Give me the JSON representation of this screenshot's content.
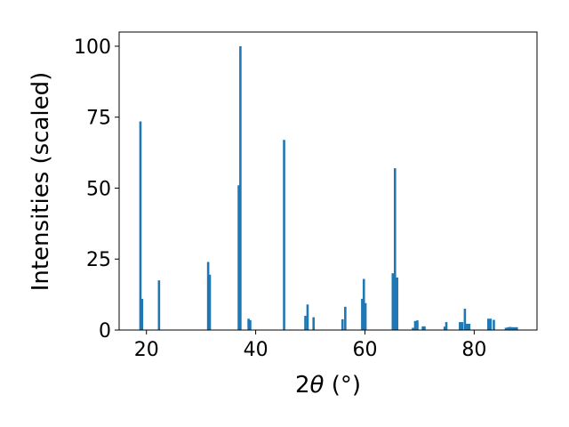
{
  "chart_data": {
    "type": "bar",
    "xlabel_main": "2",
    "xlabel_theta": "θ",
    "xlabel_unit": " (°)",
    "ylabel": "Intensities (scaled)",
    "xlim": [
      15,
      91.5
    ],
    "ylim": [
      0,
      105
    ],
    "xticks": [
      20,
      40,
      60,
      80
    ],
    "yticks": [
      0,
      25,
      50,
      75,
      100
    ],
    "bar_color": "#1f77b4",
    "x": [
      18.9,
      19.2,
      22.3,
      31.3,
      31.6,
      36.9,
      37.2,
      38.7,
      39.0,
      45.2,
      49.1,
      49.5,
      50.6,
      55.9,
      56.4,
      59.5,
      59.8,
      60.1,
      65.1,
      65.5,
      65.9,
      68.8,
      69.2,
      69.6,
      70.6,
      70.9,
      74.6,
      74.9,
      77.4,
      77.8,
      78.3,
      78.7,
      79.1,
      82.6,
      83.0,
      83.6,
      85.8,
      86.2,
      86.6,
      87.0,
      87.4,
      87.8
    ],
    "y": [
      73.5,
      11,
      17.5,
      24,
      19.5,
      51,
      100,
      4,
      3.5,
      67,
      5,
      9,
      4.5,
      3.8,
      8.2,
      11,
      18,
      9.5,
      20,
      57,
      18.5,
      0.8,
      3.2,
      3.4,
      1.3,
      1.3,
      1.2,
      2.8,
      2.8,
      2.8,
      7.5,
      2.2,
      2.2,
      4,
      4,
      3.6,
      0.8,
      1,
      1.1,
      1,
      1,
      1
    ]
  }
}
